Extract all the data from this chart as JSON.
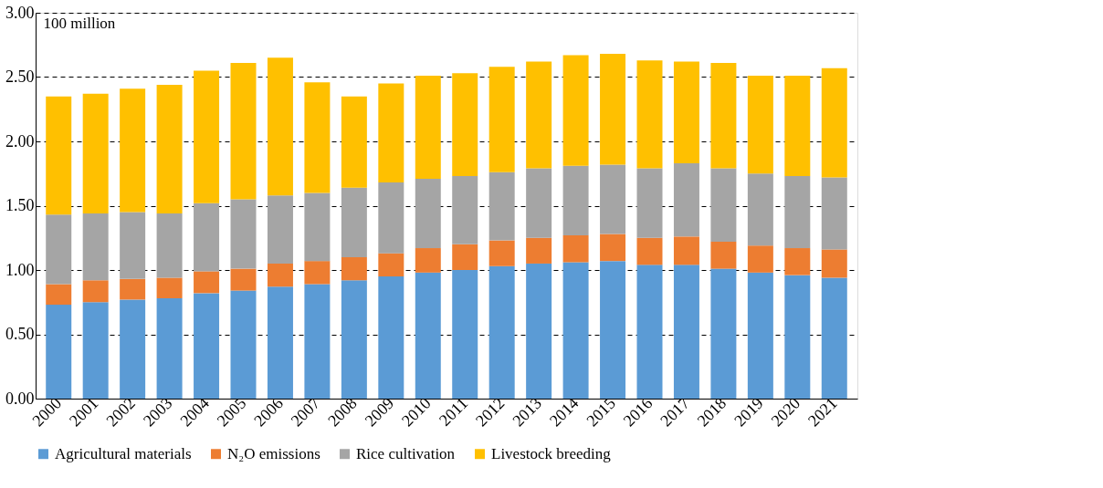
{
  "chart_data": {
    "type": "bar",
    "stacked": true,
    "ylabel": "100 million",
    "categories": [
      "2000",
      "2001",
      "2002",
      "2003",
      "2004",
      "2005",
      "2006",
      "2007",
      "2008",
      "2009",
      "2010",
      "2011",
      "2012",
      "2013",
      "2014",
      "2015",
      "2016",
      "2017",
      "2018",
      "2019",
      "2020",
      "2021"
    ],
    "series": [
      {
        "name": "Agricultural materials",
        "color": "#5b9bd5",
        "values": [
          0.73,
          0.75,
          0.77,
          0.78,
          0.82,
          0.84,
          0.87,
          0.89,
          0.92,
          0.95,
          0.98,
          1.0,
          1.03,
          1.05,
          1.06,
          1.07,
          1.04,
          1.04,
          1.01,
          0.98,
          0.96,
          0.94
        ]
      },
      {
        "name": "N₂O emissions",
        "color": "#ed7d31",
        "values": [
          0.16,
          0.17,
          0.16,
          0.16,
          0.17,
          0.17,
          0.18,
          0.18,
          0.18,
          0.18,
          0.19,
          0.2,
          0.2,
          0.2,
          0.21,
          0.21,
          0.21,
          0.22,
          0.21,
          0.21,
          0.21,
          0.22
        ]
      },
      {
        "name": "Rice cultivation",
        "color": "#a5a5a5",
        "values": [
          0.54,
          0.52,
          0.52,
          0.5,
          0.53,
          0.54,
          0.53,
          0.53,
          0.54,
          0.55,
          0.54,
          0.53,
          0.53,
          0.54,
          0.54,
          0.54,
          0.54,
          0.57,
          0.57,
          0.56,
          0.56,
          0.56
        ]
      },
      {
        "name": "Livestock breeding",
        "color": "#ffc000",
        "values": [
          0.92,
          0.93,
          0.96,
          1.0,
          1.03,
          1.06,
          1.07,
          0.86,
          0.71,
          0.77,
          0.8,
          0.8,
          0.82,
          0.83,
          0.86,
          0.86,
          0.84,
          0.79,
          0.82,
          0.76,
          0.78,
          0.85
        ]
      }
    ],
    "ylim": [
      0,
      3
    ],
    "yticks": [
      {
        "value": 0,
        "label": "0.00"
      },
      {
        "value": 0.5,
        "label": "0.50"
      },
      {
        "value": 1,
        "label": "1.00"
      },
      {
        "value": 1.5,
        "label": "1.50"
      },
      {
        "value": 2,
        "label": "2.00"
      },
      {
        "value": 2.5,
        "label": "2.50"
      },
      {
        "value": 3,
        "label": "3.00"
      }
    ],
    "grid": "y",
    "legend": "bottom"
  }
}
